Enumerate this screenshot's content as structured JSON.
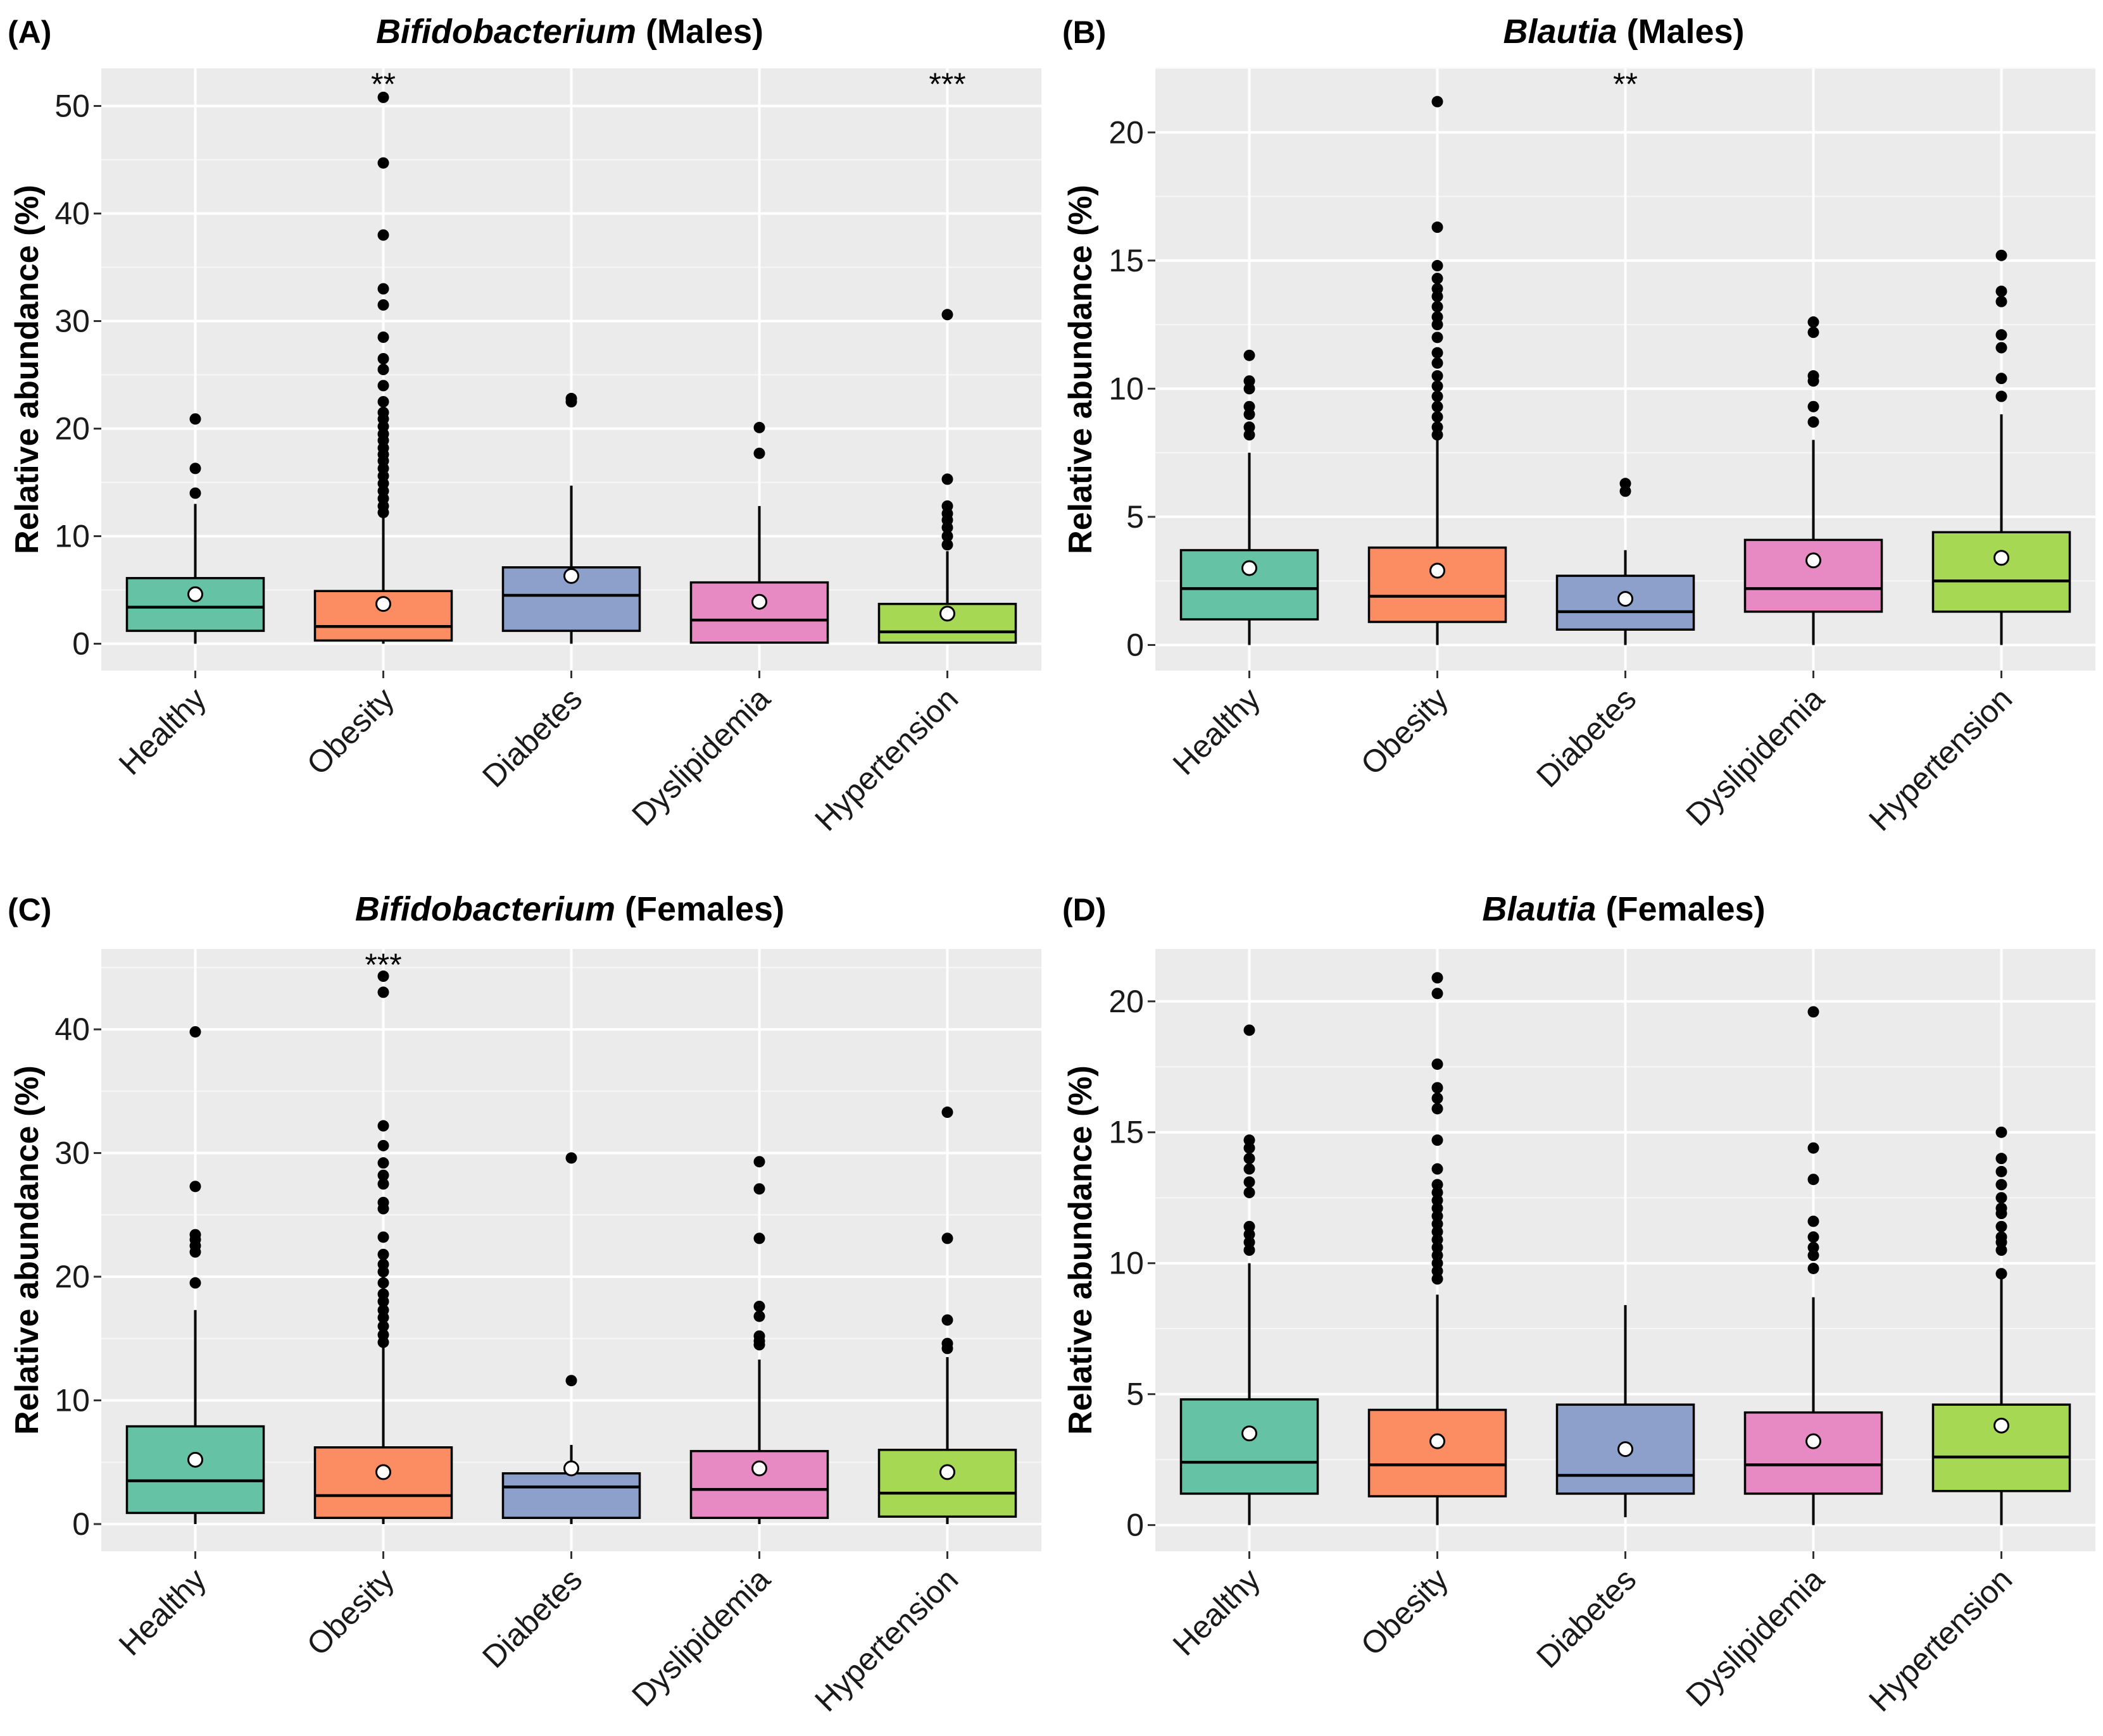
{
  "figure": {
    "ylabel": "Relative abundance (%)"
  },
  "chart_data": [
    {
      "type": "box",
      "letter": "(A)",
      "title_italic": "Bifidobacterium",
      "title_rest": " (Males)",
      "ylabel": "Relative abundance (%)",
      "ylim": [
        -2.5,
        53.5
      ],
      "yticks": [
        0,
        10,
        20,
        30,
        40,
        50
      ],
      "categories": [
        "Healthy",
        "Obesity",
        "Diabetes",
        "Dyslipidemia",
        "Hypertension"
      ],
      "colors": [
        "#66c2a5",
        "#fc8d62",
        "#8da0cb",
        "#e78ac3",
        "#a6d854"
      ],
      "boxes": [
        {
          "q1": 1.2,
          "median": 3.4,
          "q3": 6.1,
          "wlow": 0,
          "whigh": 13,
          "mean": 4.6,
          "outliers": [
            14,
            16.3,
            20.9
          ],
          "sig": ""
        },
        {
          "q1": 0.3,
          "median": 1.6,
          "q3": 4.9,
          "wlow": 0,
          "whigh": 11.8,
          "mean": 3.7,
          "outliers": [
            12.2,
            12.8,
            13.5,
            14.2,
            14.9,
            15.6,
            16.3,
            17,
            17.6,
            18.2,
            18.9,
            19.5,
            20.2,
            20.9,
            21.5,
            22.5,
            24,
            25.5,
            26.5,
            28.5,
            31.5,
            33,
            38,
            44.7,
            50.8
          ],
          "sig": "**"
        },
        {
          "q1": 1.2,
          "median": 4.5,
          "q3": 7.1,
          "wlow": 0,
          "whigh": 14.7,
          "mean": 6.3,
          "outliers": [
            22.5,
            22.8
          ],
          "sig": ""
        },
        {
          "q1": 0.1,
          "median": 2.2,
          "q3": 5.7,
          "wlow": 0,
          "whigh": 12.8,
          "mean": 3.9,
          "outliers": [
            17.7,
            20.1
          ],
          "sig": ""
        },
        {
          "q1": 0.1,
          "median": 1.1,
          "q3": 3.7,
          "wlow": 0,
          "whigh": 8.6,
          "mean": 2.8,
          "outliers": [
            9.2,
            10,
            10.8,
            11.5,
            12.1,
            12.8,
            15.3,
            30.6
          ],
          "sig": "***"
        }
      ]
    },
    {
      "type": "box",
      "letter": "(B)",
      "title_italic": "Blautia",
      "title_rest": " (Males)",
      "ylabel": "Relative abundance (%)",
      "ylim": [
        -1.0,
        22.5
      ],
      "yticks": [
        0,
        5,
        10,
        15,
        20
      ],
      "categories": [
        "Healthy",
        "Obesity",
        "Diabetes",
        "Dyslipidemia",
        "Hypertension"
      ],
      "colors": [
        "#66c2a5",
        "#fc8d62",
        "#8da0cb",
        "#e78ac3",
        "#a6d854"
      ],
      "boxes": [
        {
          "q1": 1.0,
          "median": 2.2,
          "q3": 3.7,
          "wlow": 0,
          "whigh": 7.5,
          "mean": 3.0,
          "outliers": [
            8.2,
            8.5,
            9.0,
            9.3,
            10.0,
            10.3,
            11.3
          ],
          "sig": ""
        },
        {
          "q1": 0.9,
          "median": 1.9,
          "q3": 3.8,
          "wlow": 0,
          "whigh": 8.0,
          "mean": 2.9,
          "outliers": [
            8.2,
            8.5,
            8.9,
            9.3,
            9.7,
            10.1,
            10.5,
            11.0,
            11.4,
            12.0,
            12.5,
            12.8,
            13.2,
            13.6,
            13.9,
            14.3,
            14.8,
            16.3,
            21.2
          ],
          "sig": ""
        },
        {
          "q1": 0.6,
          "median": 1.3,
          "q3": 2.7,
          "wlow": 0,
          "whigh": 3.7,
          "mean": 1.8,
          "outliers": [
            6.0,
            6.3
          ],
          "sig": "**"
        },
        {
          "q1": 1.3,
          "median": 2.2,
          "q3": 4.1,
          "wlow": 0,
          "whigh": 8.0,
          "mean": 3.3,
          "outliers": [
            8.7,
            9.3,
            10.3,
            10.5,
            12.2,
            12.6
          ],
          "sig": ""
        },
        {
          "q1": 1.3,
          "median": 2.5,
          "q3": 4.4,
          "wlow": 0,
          "whigh": 9.0,
          "mean": 3.4,
          "outliers": [
            9.7,
            10.4,
            11.6,
            12.1,
            13.4,
            13.8,
            15.2
          ],
          "sig": ""
        }
      ]
    },
    {
      "type": "box",
      "letter": "(C)",
      "title_italic": "Bifidobacterium",
      "title_rest": " (Females)",
      "ylabel": "Relative abundance (%)",
      "ylim": [
        -2.2,
        46.5
      ],
      "yticks": [
        0,
        10,
        20,
        30,
        40
      ],
      "categories": [
        "Healthy",
        "Obesity",
        "Diabetes",
        "Dyslipidemia",
        "Hypertension"
      ],
      "colors": [
        "#66c2a5",
        "#fc8d62",
        "#8da0cb",
        "#e78ac3",
        "#a6d854"
      ],
      "boxes": [
        {
          "q1": 0.9,
          "median": 3.5,
          "q3": 7.9,
          "wlow": 0,
          "whigh": 17.3,
          "mean": 5.2,
          "outliers": [
            19.5,
            22,
            22.5,
            23,
            23.4,
            27.3,
            39.8
          ],
          "sig": ""
        },
        {
          "q1": 0.5,
          "median": 2.3,
          "q3": 6.2,
          "wlow": 0,
          "whigh": 14.3,
          "mean": 4.2,
          "outliers": [
            14.7,
            15.3,
            16,
            16.7,
            17.3,
            18,
            18.6,
            19.5,
            20.4,
            21,
            21.8,
            23.2,
            25.5,
            26,
            27.5,
            28.2,
            29.2,
            30.6,
            32.2,
            43,
            44.3
          ],
          "sig": "***"
        },
        {
          "q1": 0.5,
          "median": 3.0,
          "q3": 4.1,
          "wlow": 0,
          "whigh": 6.4,
          "mean": 4.5,
          "outliers": [
            11.6,
            29.6
          ],
          "sig": ""
        },
        {
          "q1": 0.5,
          "median": 2.8,
          "q3": 5.9,
          "wlow": 0,
          "whigh": 13.3,
          "mean": 4.5,
          "outliers": [
            14.5,
            14.8,
            15.2,
            16.8,
            17.6,
            23.1,
            27.1,
            29.3
          ],
          "sig": ""
        },
        {
          "q1": 0.6,
          "median": 2.5,
          "q3": 6.0,
          "wlow": 0,
          "whigh": 13.5,
          "mean": 4.2,
          "outliers": [
            14.2,
            14.6,
            16.5,
            23.1,
            33.3
          ],
          "sig": ""
        }
      ]
    },
    {
      "type": "box",
      "letter": "(D)",
      "title_italic": "Blautia",
      "title_rest": " (Females)",
      "ylabel": "Relative abundance (%)",
      "ylim": [
        -1.0,
        22.0
      ],
      "yticks": [
        0,
        5,
        10,
        15,
        20
      ],
      "categories": [
        "Healthy",
        "Obesity",
        "Diabetes",
        "Dyslipidemia",
        "Hypertension"
      ],
      "colors": [
        "#66c2a5",
        "#fc8d62",
        "#8da0cb",
        "#e78ac3",
        "#a6d854"
      ],
      "boxes": [
        {
          "q1": 1.2,
          "median": 2.4,
          "q3": 4.8,
          "wlow": 0,
          "whigh": 10.0,
          "mean": 3.5,
          "outliers": [
            10.5,
            10.8,
            11.1,
            11.4,
            12.7,
            13.1,
            13.6,
            14.0,
            14.4,
            14.7,
            18.9
          ],
          "sig": ""
        },
        {
          "q1": 1.1,
          "median": 2.3,
          "q3": 4.4,
          "wlow": 0,
          "whigh": 8.8,
          "mean": 3.2,
          "outliers": [
            9.4,
            9.7,
            10.0,
            10.3,
            10.6,
            10.9,
            11.2,
            11.5,
            11.8,
            12.1,
            12.4,
            12.7,
            13.0,
            13.6,
            14.7,
            15.9,
            16.3,
            16.7,
            17.6,
            20.3,
            20.9
          ],
          "sig": ""
        },
        {
          "q1": 1.2,
          "median": 1.9,
          "q3": 4.6,
          "wlow": 0.3,
          "whigh": 8.4,
          "mean": 2.9,
          "outliers": [],
          "sig": ""
        },
        {
          "q1": 1.2,
          "median": 2.3,
          "q3": 4.3,
          "wlow": 0,
          "whigh": 8.7,
          "mean": 3.2,
          "outliers": [
            9.8,
            10.3,
            10.6,
            11.0,
            11.6,
            13.2,
            14.4,
            19.6
          ],
          "sig": ""
        },
        {
          "q1": 1.3,
          "median": 2.6,
          "q3": 4.6,
          "wlow": 0,
          "whigh": 9.4,
          "mean": 3.8,
          "outliers": [
            9.6,
            10.5,
            10.8,
            11.0,
            11.4,
            11.9,
            12.1,
            12.5,
            13.0,
            13.5,
            14.0,
            15.0
          ],
          "sig": ""
        }
      ]
    }
  ]
}
